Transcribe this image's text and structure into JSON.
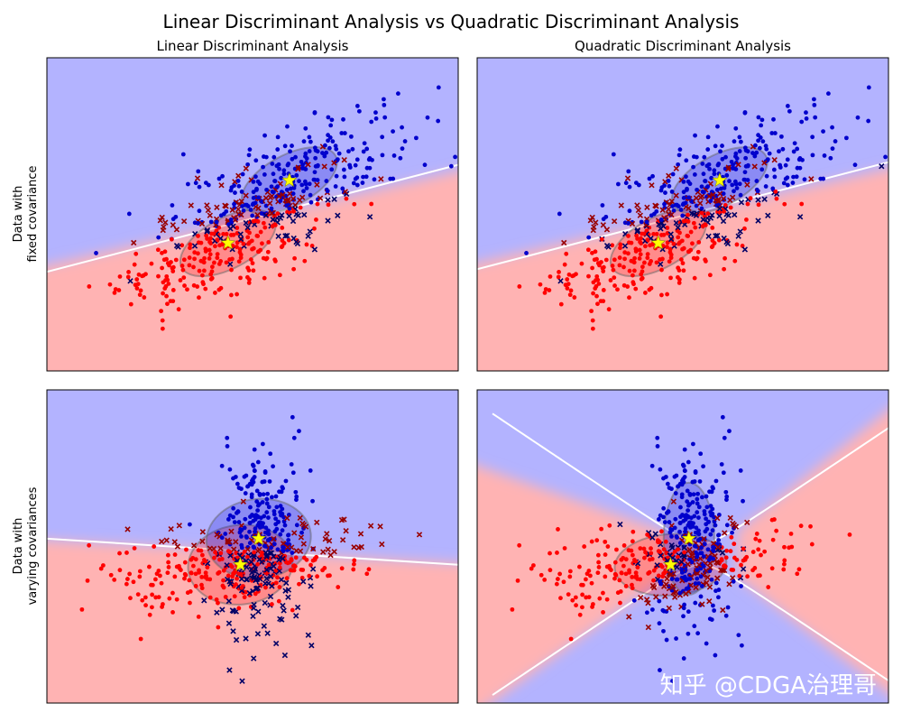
{
  "figure": {
    "title": "Linear Discriminant Analysis vs Quadratic Discriminant Analysis",
    "watermark": "知乎 @CDGA治理哥"
  },
  "rows": [
    {
      "label_line1": "Data with",
      "label_line2": "fixed covariance"
    },
    {
      "label_line1": "Data with",
      "label_line2": "varying covariances"
    }
  ],
  "columns": [
    {
      "title": "Linear Discriminant Analysis"
    },
    {
      "title": "Quadratic Discriminant Analysis"
    }
  ],
  "colors": {
    "class0_region": "#ffb3b3",
    "class1_region": "#b3b3ff",
    "class0_point": "#ff0000",
    "class1_point": "#0000cc",
    "class0_misclassified": "#990000",
    "class1_misclassified": "#000066",
    "boundary": "#ffffff",
    "mean_marker": "#ffff00"
  },
  "chart_data": [
    {
      "type": "scatter",
      "title": "Linear Discriminant Analysis",
      "row_label": "Data with fixed covariance",
      "classifier": "LDA",
      "dataset": "fixed",
      "means": [
        [
          -0.15,
          -0.15
        ],
        [
          0.85,
          1.05
        ]
      ],
      "boundary": {
        "shape": "line",
        "endpoints": [
          [
            -3.1,
            -0.7
          ],
          [
            3.6,
            1.35
          ]
        ]
      }
    },
    {
      "type": "scatter",
      "title": "Quadratic Discriminant Analysis",
      "row_label": "Data with fixed covariance",
      "classifier": "QDA",
      "dataset": "fixed",
      "means": [
        [
          -0.15,
          -0.15
        ],
        [
          0.85,
          1.05
        ]
      ],
      "boundary": {
        "shape": "line",
        "endpoints": [
          [
            -3.1,
            -0.65
          ],
          [
            3.6,
            1.4
          ]
        ]
      }
    },
    {
      "type": "scatter",
      "title": "Linear Discriminant Analysis",
      "row_label": "Data with varying covariances",
      "classifier": "LDA",
      "dataset": "varying",
      "means": [
        [
          0.05,
          0.05
        ],
        [
          0.35,
          0.55
        ]
      ],
      "boundary": {
        "shape": "line",
        "endpoints": [
          [
            -3.1,
            0.55
          ],
          [
            3.6,
            0.05
          ]
        ]
      }
    },
    {
      "type": "scatter",
      "title": "Quadratic Discriminant Analysis",
      "row_label": "Data with varying covariances",
      "classifier": "QDA",
      "dataset": "varying",
      "means": [
        [
          0.05,
          0.05
        ],
        [
          0.35,
          0.55
        ]
      ],
      "boundary": {
        "shape": "hyperbola",
        "center": [
          0.55,
          0.25
        ]
      }
    }
  ]
}
